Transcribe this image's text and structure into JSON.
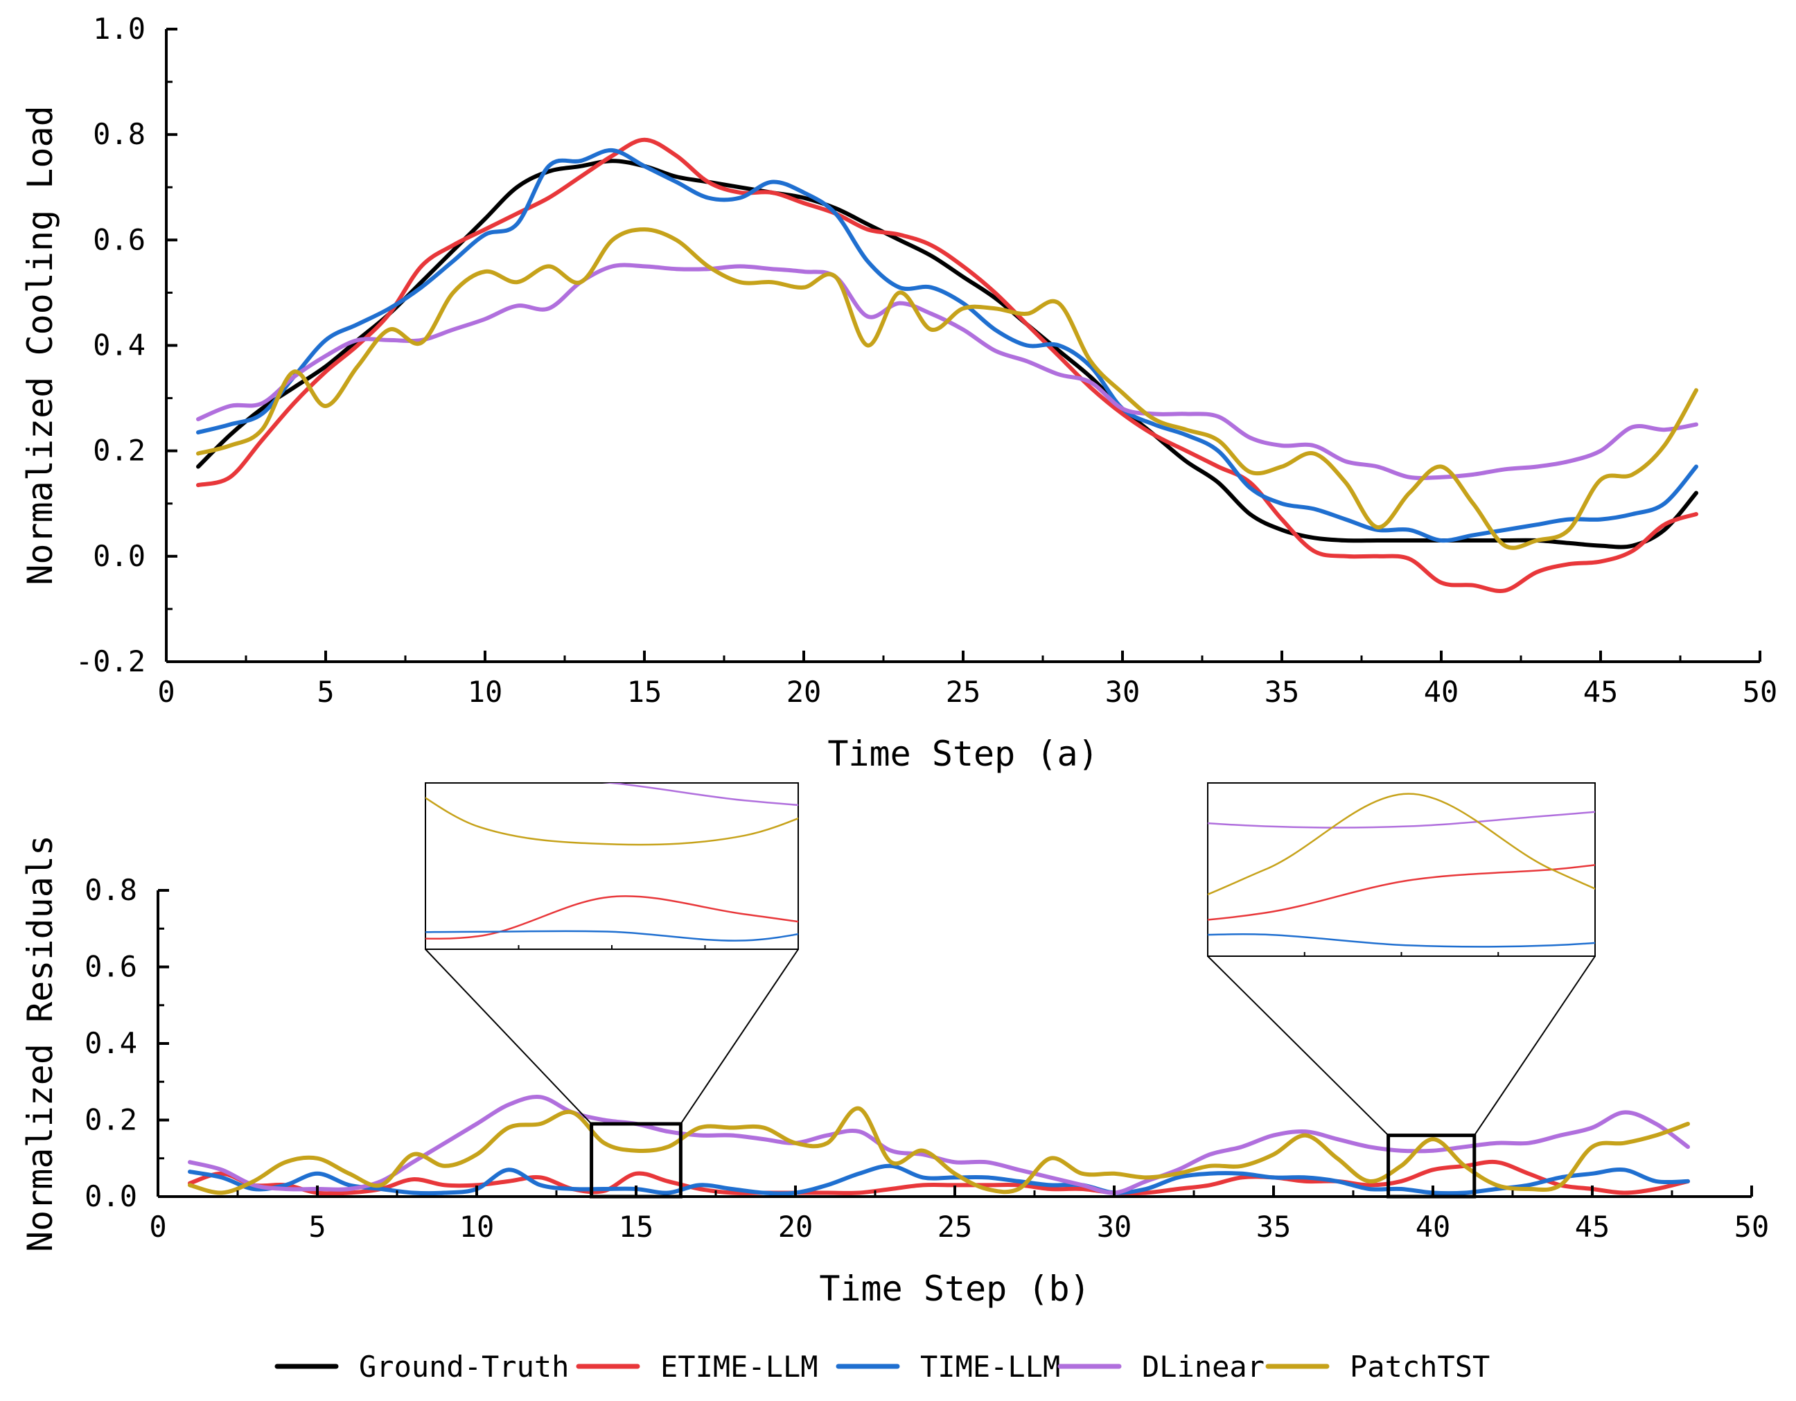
{
  "chart_data": [
    {
      "type": "line",
      "xlabel": "Time Step (a)",
      "ylabel": "Normalized Cooling Load",
      "xlim": [
        0,
        50
      ],
      "ylim": [
        -0.2,
        1.0
      ],
      "xticks": [
        "0",
        "5",
        "10",
        "15",
        "20",
        "25",
        "30",
        "35",
        "40",
        "45",
        "50"
      ],
      "yticks": [
        "-0.2",
        "0.0",
        "0.2",
        "0.4",
        "0.6",
        "0.8",
        "1.0"
      ],
      "x": [
        1,
        2,
        3,
        4,
        5,
        6,
        7,
        8,
        9,
        10,
        11,
        12,
        13,
        14,
        15,
        16,
        17,
        18,
        19,
        20,
        21,
        22,
        23,
        24,
        25,
        26,
        27,
        28,
        29,
        30,
        31,
        32,
        33,
        34,
        35,
        36,
        37,
        38,
        39,
        40,
        41,
        42,
        43,
        44,
        45,
        46,
        47,
        48
      ],
      "series": [
        {
          "name": "Ground-Truth",
          "color": "#000000",
          "values": [
            0.17,
            0.23,
            0.28,
            0.32,
            0.36,
            0.41,
            0.46,
            0.52,
            0.58,
            0.64,
            0.7,
            0.73,
            0.74,
            0.75,
            0.74,
            0.72,
            0.71,
            0.7,
            0.69,
            0.68,
            0.66,
            0.63,
            0.6,
            0.57,
            0.53,
            0.49,
            0.44,
            0.39,
            0.34,
            0.28,
            0.23,
            0.18,
            0.14,
            0.08,
            0.05,
            0.035,
            0.03,
            0.03,
            0.03,
            0.03,
            0.03,
            0.03,
            0.03,
            0.025,
            0.02,
            0.02,
            0.05,
            0.12
          ]
        },
        {
          "name": "ETIME-LLM",
          "color": "#e8373a",
          "values": [
            0.135,
            0.15,
            0.22,
            0.29,
            0.35,
            0.4,
            0.46,
            0.55,
            0.59,
            0.62,
            0.65,
            0.68,
            0.72,
            0.76,
            0.79,
            0.76,
            0.71,
            0.69,
            0.69,
            0.67,
            0.65,
            0.62,
            0.61,
            0.59,
            0.55,
            0.5,
            0.44,
            0.38,
            0.32,
            0.27,
            0.23,
            0.2,
            0.17,
            0.14,
            0.07,
            0.01,
            0.0,
            0.0,
            -0.005,
            -0.05,
            -0.055,
            -0.065,
            -0.03,
            -0.015,
            -0.01,
            0.01,
            0.06,
            0.08
          ]
        },
        {
          "name": "TIME-LLM",
          "color": "#1f6fd0",
          "values": [
            0.235,
            0.25,
            0.27,
            0.34,
            0.41,
            0.44,
            0.47,
            0.51,
            0.56,
            0.61,
            0.63,
            0.74,
            0.75,
            0.77,
            0.74,
            0.71,
            0.68,
            0.68,
            0.71,
            0.69,
            0.65,
            0.56,
            0.51,
            0.51,
            0.48,
            0.43,
            0.4,
            0.4,
            0.36,
            0.28,
            0.25,
            0.23,
            0.2,
            0.13,
            0.1,
            0.09,
            0.07,
            0.05,
            0.05,
            0.03,
            0.04,
            0.05,
            0.06,
            0.07,
            0.07,
            0.08,
            0.1,
            0.17
          ]
        },
        {
          "name": "DLinear",
          "color": "#b06fdd",
          "values": [
            0.26,
            0.285,
            0.29,
            0.34,
            0.38,
            0.41,
            0.41,
            0.41,
            0.43,
            0.45,
            0.475,
            0.47,
            0.52,
            0.55,
            0.55,
            0.545,
            0.545,
            0.55,
            0.545,
            0.54,
            0.53,
            0.455,
            0.48,
            0.46,
            0.43,
            0.39,
            0.37,
            0.345,
            0.33,
            0.28,
            0.27,
            0.27,
            0.265,
            0.225,
            0.21,
            0.21,
            0.18,
            0.17,
            0.15,
            0.15,
            0.155,
            0.165,
            0.17,
            0.18,
            0.2,
            0.245,
            0.24,
            0.25
          ]
        },
        {
          "name": "PatchTST",
          "color": "#c6a21a",
          "values": [
            0.195,
            0.21,
            0.24,
            0.35,
            0.285,
            0.36,
            0.43,
            0.405,
            0.5,
            0.54,
            0.52,
            0.55,
            0.52,
            0.6,
            0.62,
            0.6,
            0.55,
            0.52,
            0.52,
            0.51,
            0.53,
            0.4,
            0.5,
            0.43,
            0.47,
            0.47,
            0.46,
            0.48,
            0.37,
            0.31,
            0.26,
            0.24,
            0.22,
            0.16,
            0.17,
            0.195,
            0.14,
            0.055,
            0.12,
            0.17,
            0.1,
            0.02,
            0.03,
            0.05,
            0.145,
            0.155,
            0.21,
            0.315
          ]
        }
      ]
    },
    {
      "type": "line",
      "xlabel": "Time Step (b)",
      "ylabel": "Normalized Residuals",
      "xlim": [
        0,
        50
      ],
      "ylim": [
        0.0,
        0.8
      ],
      "xticks": [
        "0",
        "5",
        "10",
        "15",
        "20",
        "25",
        "30",
        "35",
        "40",
        "45",
        "50"
      ],
      "yticks": [
        "0.0",
        "0.2",
        "0.4",
        "0.6",
        "0.8"
      ],
      "x": [
        1,
        2,
        3,
        4,
        5,
        6,
        7,
        8,
        9,
        10,
        11,
        12,
        13,
        14,
        15,
        16,
        17,
        18,
        19,
        20,
        21,
        22,
        23,
        24,
        25,
        26,
        27,
        28,
        29,
        30,
        31,
        32,
        33,
        34,
        35,
        36,
        37,
        38,
        39,
        40,
        41,
        42,
        43,
        44,
        45,
        46,
        47,
        48
      ],
      "insets": [
        "x 13.6–16.4",
        "x 38.6–41.3"
      ],
      "series": [
        {
          "name": "ETIME-LLM",
          "color": "#e8373a",
          "values": [
            0.035,
            0.06,
            0.03,
            0.03,
            0.01,
            0.01,
            0.02,
            0.045,
            0.03,
            0.03,
            0.04,
            0.05,
            0.02,
            0.015,
            0.06,
            0.04,
            0.02,
            0.01,
            0.01,
            0.01,
            0.01,
            0.01,
            0.02,
            0.03,
            0.03,
            0.03,
            0.03,
            0.02,
            0.02,
            0.01,
            0.01,
            0.02,
            0.03,
            0.05,
            0.05,
            0.04,
            0.04,
            0.03,
            0.04,
            0.07,
            0.08,
            0.09,
            0.06,
            0.03,
            0.02,
            0.01,
            0.02,
            0.04
          ]
        },
        {
          "name": "TIME-LLM",
          "color": "#1f6fd0",
          "values": [
            0.065,
            0.05,
            0.02,
            0.03,
            0.06,
            0.03,
            0.02,
            0.01,
            0.01,
            0.02,
            0.07,
            0.03,
            0.02,
            0.02,
            0.02,
            0.01,
            0.03,
            0.02,
            0.01,
            0.01,
            0.03,
            0.06,
            0.08,
            0.05,
            0.05,
            0.05,
            0.04,
            0.03,
            0.03,
            0.01,
            0.02,
            0.05,
            0.06,
            0.06,
            0.05,
            0.05,
            0.04,
            0.02,
            0.02,
            0.01,
            0.01,
            0.02,
            0.03,
            0.05,
            0.06,
            0.07,
            0.04,
            0.04
          ]
        },
        {
          "name": "DLinear",
          "color": "#b06fdd",
          "values": [
            0.09,
            0.07,
            0.03,
            0.02,
            0.02,
            0.02,
            0.04,
            0.09,
            0.14,
            0.19,
            0.24,
            0.26,
            0.22,
            0.2,
            0.19,
            0.17,
            0.16,
            0.16,
            0.15,
            0.14,
            0.16,
            0.17,
            0.12,
            0.11,
            0.09,
            0.09,
            0.07,
            0.05,
            0.03,
            0.01,
            0.04,
            0.07,
            0.11,
            0.13,
            0.16,
            0.17,
            0.15,
            0.13,
            0.12,
            0.12,
            0.13,
            0.14,
            0.14,
            0.16,
            0.18,
            0.22,
            0.19,
            0.13
          ]
        },
        {
          "name": "PatchTST",
          "color": "#c6a21a",
          "values": [
            0.03,
            0.01,
            0.04,
            0.09,
            0.1,
            0.06,
            0.03,
            0.11,
            0.08,
            0.11,
            0.18,
            0.19,
            0.22,
            0.14,
            0.12,
            0.13,
            0.18,
            0.18,
            0.18,
            0.14,
            0.14,
            0.23,
            0.09,
            0.12,
            0.06,
            0.02,
            0.02,
            0.1,
            0.06,
            0.06,
            0.05,
            0.06,
            0.08,
            0.08,
            0.11,
            0.16,
            0.1,
            0.04,
            0.08,
            0.15,
            0.08,
            0.03,
            0.02,
            0.03,
            0.13,
            0.14,
            0.16,
            0.19
          ]
        }
      ]
    }
  ],
  "legend": {
    "position": "bottom",
    "items": [
      {
        "label": "Ground-Truth",
        "color": "#000000"
      },
      {
        "label": "ETIME-LLM",
        "color": "#e8373a"
      },
      {
        "label": "TIME-LLM",
        "color": "#1f6fd0"
      },
      {
        "label": "DLinear",
        "color": "#b06fdd"
      },
      {
        "label": "PatchTST",
        "color": "#c6a21a"
      }
    ]
  }
}
